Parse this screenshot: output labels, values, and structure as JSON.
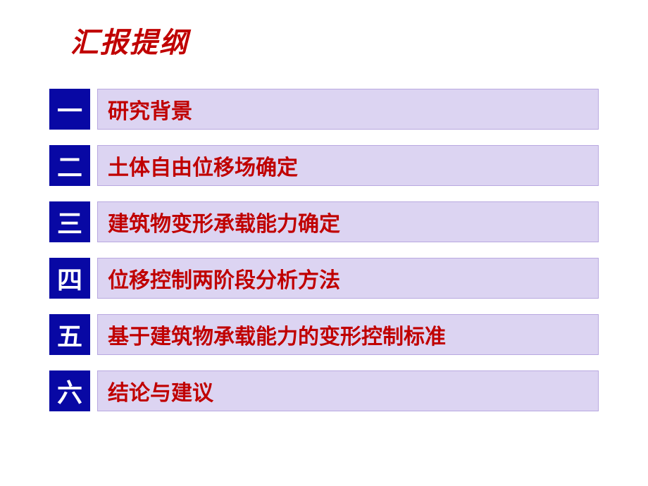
{
  "slide": {
    "title": "汇报提纲",
    "title_color": "#c00000",
    "title_fontsize": 40,
    "background_color": "#ffffff",
    "num_box_bg": "#0808a4",
    "num_text_color": "#ffffff",
    "label_box_bg": "#dcd4f2",
    "label_box_border": "#b8a8e0",
    "label_text_color": "#c00000",
    "label_fontsize": 30,
    "num_fontsize": 36,
    "items": [
      {
        "num": "一",
        "label": "研究背景"
      },
      {
        "num": "二",
        "label": "土体自由位移场确定"
      },
      {
        "num": "三",
        "label": "建筑物变形承载能力确定"
      },
      {
        "num": "四",
        "label": "位移控制两阶段分析方法"
      },
      {
        "num": "五",
        "label": "基于建筑物承载能力的变形控制标准"
      },
      {
        "num": "六",
        "label": "结论与建议"
      }
    ]
  }
}
